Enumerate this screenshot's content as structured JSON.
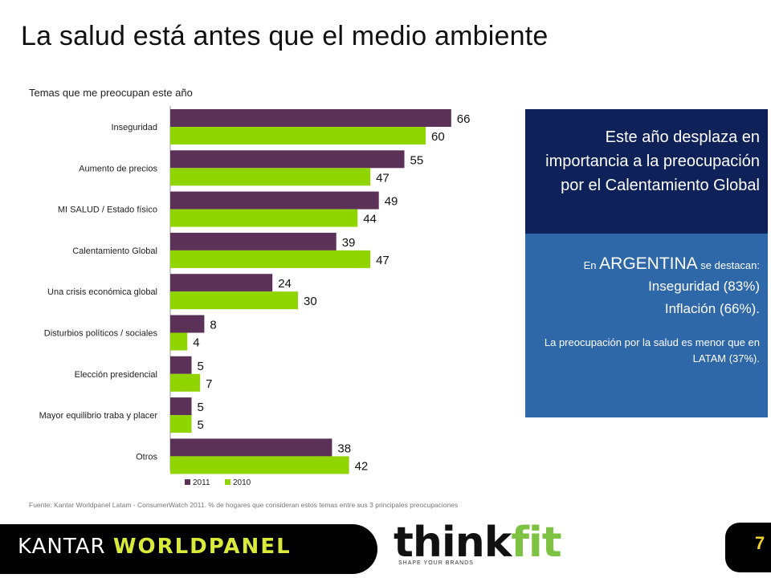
{
  "title": "La salud está antes que el medio ambiente",
  "colors": {
    "series_2011": "#5b3157",
    "series_2010": "#90d400",
    "box_top": "#0e2159",
    "box_bottom": "#2f68a8"
  },
  "chart_data": {
    "type": "bar",
    "orientation": "horizontal",
    "title": "Temas que me preocupan este año",
    "categories": [
      "Inseguridad",
      "Aumento de precios",
      "MI SALUD / Estado físico",
      "Calentamiento Global",
      "Una crisis económica global",
      "Disturbios políticos / sociales",
      "Elección presidencial",
      "Mayor equilibrio traba y placer",
      "Otros"
    ],
    "series": [
      {
        "name": "2011",
        "values": [
          66,
          55,
          49,
          39,
          24,
          8,
          5,
          5,
          38
        ]
      },
      {
        "name": "2010",
        "values": [
          60,
          47,
          44,
          47,
          30,
          4,
          7,
          5,
          42
        ]
      }
    ],
    "xlim": [
      0,
      100
    ],
    "grid": false,
    "legend_position": "bottom"
  },
  "box_top_text": "Este año desplaza en importancia a la preocupación por el Calentamiento Global",
  "argentina": {
    "prefix": "En",
    "country": "ARGENTINA",
    "suffix": "se destacan:",
    "item1": "Inseguridad (83%)",
    "item2": "Inflación (66%).",
    "note": "La preocupación por la salud es menor que en LATAM (37%)."
  },
  "source": "Fuente: Kantar Worldpanel Latam - ConsumerWatch 2011. % de hogares que consideran estos temas entre sus 3 principales preocupaciones",
  "footer": {
    "kantar": "KANTAR",
    "worldpanel": "WORLDPANEL",
    "think": "think",
    "fit": "fit",
    "tagline": "SHAPE YOUR BRANDS"
  },
  "page_number": "7"
}
